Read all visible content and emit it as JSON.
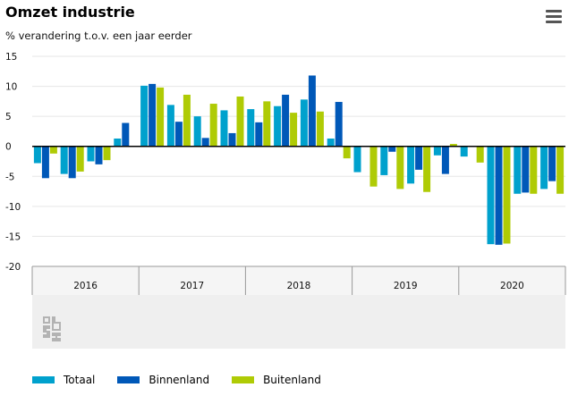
{
  "header": {
    "title": "Omzet industrie",
    "subtitle": "% verandering t.o.v. een jaar eerder",
    "menu_icon": "hamburger-menu-icon"
  },
  "logo": {
    "icon": "cbs-logo-icon"
  },
  "colors": {
    "totaal": "#00a1cd",
    "binnenland": "#0058b8",
    "buitenland": "#afcb05",
    "grid": "#e6e6e6",
    "axis": "#000000",
    "navigator": "#efefef"
  },
  "chart_data": {
    "type": "bar",
    "title": "Omzet industrie",
    "subtitle": "% verandering t.o.v. een jaar eerder",
    "ylim": [
      -20,
      15
    ],
    "yticks": [
      -20,
      -15,
      -10,
      -5,
      0,
      5,
      10,
      15
    ],
    "grid": true,
    "legend": "bottom-left",
    "x_groups": [
      "2016",
      "2017",
      "2018",
      "2019",
      "2020"
    ],
    "categories": [
      "2016-1",
      "2016-2",
      "2016-3",
      "2016-4",
      "2017-1",
      "2017-2",
      "2017-3",
      "2017-4",
      "2018-1",
      "2018-2",
      "2018-3",
      "2018-4",
      "2019-1",
      "2019-2",
      "2019-3",
      "2019-4",
      "2020-1",
      "2020-2",
      "2020-3",
      "2020-4"
    ],
    "series": [
      {
        "name": "Totaal",
        "values": [
          -2.8,
          -4.6,
          -2.5,
          1.3,
          10.1,
          6.9,
          5.0,
          6.0,
          6.2,
          6.7,
          7.8,
          1.3,
          -4.3,
          -4.8,
          -6.2,
          -1.5,
          -1.7,
          -16.3,
          -7.9,
          -7.1
        ]
      },
      {
        "name": "Binnenland",
        "values": [
          -5.3,
          -5.3,
          -3.0,
          3.9,
          10.4,
          4.1,
          1.4,
          2.2,
          4.0,
          8.6,
          11.8,
          7.4,
          0.0,
          -0.9,
          -3.9,
          -4.6,
          0.0,
          -16.4,
          -7.7,
          -5.8
        ]
      },
      {
        "name": "Buitenland",
        "values": [
          -1.2,
          -4.2,
          -2.3,
          0.0,
          9.8,
          8.6,
          7.1,
          8.3,
          7.5,
          5.6,
          5.8,
          -2.0,
          -6.7,
          -7.1,
          -7.6,
          0.4,
          -2.7,
          -16.2,
          -7.9,
          -7.9
        ]
      }
    ]
  }
}
